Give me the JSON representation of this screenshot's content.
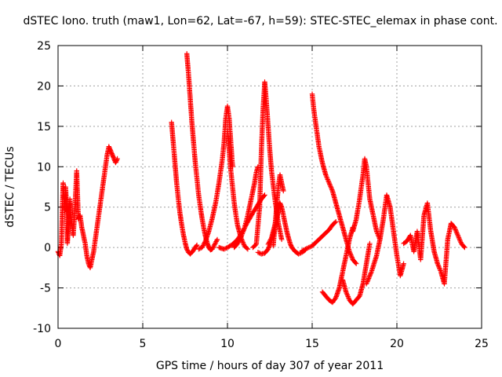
{
  "chart_data": {
    "type": "scatter",
    "title": "dSTEC Iono. truth (maw1, Lon=62, Lat=-67, h=59): STEC-STEC_elemax in phase cont.",
    "xlabel": "GPS time / hours of day 307 of year 2011",
    "ylabel": "dSTEC  / TECUs",
    "xlim": [
      0,
      25
    ],
    "ylim": [
      -10,
      25
    ],
    "xticks": [
      0,
      5,
      10,
      15,
      20,
      25
    ],
    "yticks": [
      -10,
      -5,
      0,
      5,
      10,
      15,
      20,
      25
    ],
    "grid": true,
    "marker": "plus",
    "color": "#ff0000",
    "series": [
      {
        "x": [
          0.0,
          0.1,
          0.2,
          0.3,
          0.35,
          0.4,
          0.45,
          0.5,
          0.55,
          0.6,
          0.7,
          0.8,
          0.9,
          1.0,
          1.1,
          1.2,
          1.3,
          1.4,
          1.5,
          1.6,
          1.7,
          1.8,
          1.9,
          2.0,
          2.1,
          2.2,
          2.3,
          2.4,
          2.5,
          2.6,
          2.7,
          2.8,
          2.9,
          3.0,
          3.1,
          3.2,
          3.3,
          3.4,
          3.5
        ],
        "y": [
          -0.5,
          -1.0,
          0.5,
          8.0,
          6.0,
          4.5,
          7.5,
          5.0,
          0.5,
          2.0,
          6.0,
          3.0,
          1.5,
          5.0,
          9.5,
          3.5,
          4.0,
          2.5,
          1.5,
          0.5,
          -1.0,
          -2.0,
          -2.5,
          -1.5,
          -0.5,
          1.0,
          2.5,
          4.0,
          5.5,
          7.0,
          8.5,
          10.0,
          11.5,
          12.5,
          12.0,
          11.5,
          11.0,
          10.5,
          11.0
        ]
      },
      {
        "x": [
          6.7,
          6.8,
          6.9,
          7.0,
          7.1,
          7.2,
          7.3,
          7.4,
          7.5,
          7.6,
          7.7,
          7.8,
          7.9,
          8.0,
          8.1,
          8.2
        ],
        "y": [
          15.5,
          13.0,
          10.5,
          8.0,
          6.0,
          4.2,
          2.8,
          1.6,
          0.6,
          -0.2,
          -0.6,
          -0.8,
          -0.6,
          -0.3,
          0.0,
          0.3
        ]
      },
      {
        "x": [
          7.6,
          7.7,
          7.8,
          7.9,
          8.0,
          8.1,
          8.2,
          8.3,
          8.4,
          8.5,
          8.6,
          8.7,
          8.8,
          8.9,
          9.0,
          9.1,
          9.2,
          9.3,
          9.4
        ],
        "y": [
          24.0,
          21.5,
          18.5,
          15.5,
          13.0,
          10.5,
          8.5,
          6.5,
          5.0,
          3.6,
          2.4,
          1.4,
          0.6,
          0.0,
          -0.3,
          -0.2,
          0.2,
          0.6,
          1.0
        ]
      },
      {
        "x": [
          8.3,
          8.5,
          8.7,
          8.9,
          9.1,
          9.3,
          9.5,
          9.7,
          9.8,
          9.9,
          10.0,
          10.1,
          10.2,
          10.3
        ],
        "y": [
          -0.2,
          0.0,
          0.8,
          2.0,
          3.6,
          5.5,
          8.0,
          11.0,
          13.0,
          16.0,
          17.5,
          16.0,
          13.0,
          10.0
        ]
      },
      {
        "x": [
          10.0,
          10.1,
          10.2,
          10.3,
          10.4,
          10.5,
          10.6,
          10.8,
          11.0,
          11.2
        ],
        "y": [
          14.5,
          12.0,
          9.5,
          7.5,
          5.5,
          4.0,
          2.7,
          1.2,
          0.2,
          -0.2
        ]
      },
      {
        "x": [
          9.5,
          9.8,
          10.0,
          10.3,
          10.6,
          10.9,
          11.2,
          11.5,
          11.8,
          12.0,
          12.2
        ],
        "y": [
          0.0,
          -0.2,
          0.0,
          0.4,
          1.0,
          2.0,
          3.2,
          4.3,
          5.3,
          6.0,
          6.5
        ]
      },
      {
        "x": [
          10.4,
          10.6,
          10.8,
          11.0,
          11.2,
          11.4,
          11.6,
          11.7,
          11.8
        ],
        "y": [
          0.0,
          0.5,
          1.3,
          2.4,
          4.0,
          6.0,
          8.0,
          9.3,
          10.0
        ]
      },
      {
        "x": [
          11.5,
          11.7,
          11.9,
          12.0,
          12.1,
          12.2,
          12.3,
          12.4,
          12.5,
          12.6,
          12.8,
          13.0,
          13.2
        ],
        "y": [
          0.0,
          0.4,
          5.0,
          12.0,
          17.0,
          20.5,
          18.0,
          15.0,
          12.0,
          9.5,
          6.0,
          3.0,
          1.0
        ]
      },
      {
        "x": [
          11.8,
          12.0,
          12.2,
          12.4,
          12.6,
          12.8,
          13.0
        ],
        "y": [
          -0.6,
          -0.8,
          -0.7,
          -0.2,
          0.8,
          2.5,
          4.5
        ]
      },
      {
        "x": [
          12.4,
          12.6,
          12.8,
          13.0,
          13.1,
          13.2,
          13.3,
          13.4,
          13.5,
          13.6,
          13.7,
          13.8,
          14.0,
          14.2,
          14.4,
          14.6
        ],
        "y": [
          0.4,
          1.2,
          2.8,
          4.5,
          5.5,
          5.0,
          4.0,
          3.0,
          2.0,
          1.2,
          0.5,
          0.0,
          -0.5,
          -0.8,
          -0.6,
          -0.3
        ]
      },
      {
        "x": [
          12.7,
          12.8,
          12.9,
          13.0,
          13.1,
          13.2,
          13.3
        ],
        "y": [
          0.2,
          2.5,
          5.0,
          7.5,
          9.0,
          8.0,
          7.0
        ]
      },
      {
        "x": [
          14.4,
          14.6,
          14.8,
          15.0,
          15.2,
          15.4,
          15.6,
          15.8,
          16.0,
          16.2,
          16.4
        ],
        "y": [
          -0.4,
          -0.2,
          0.0,
          0.2,
          0.6,
          1.0,
          1.4,
          1.8,
          2.2,
          2.8,
          3.2
        ]
      },
      {
        "x": [
          15.0,
          15.1,
          15.2,
          15.3,
          15.4,
          15.5,
          15.6,
          15.8,
          16.0,
          16.2,
          16.4,
          16.6,
          16.8,
          17.0,
          17.2,
          17.4,
          17.6
        ],
        "y": [
          19.0,
          17.0,
          15.5,
          14.0,
          12.5,
          11.5,
          10.5,
          9.0,
          8.0,
          7.0,
          5.5,
          4.0,
          2.5,
          1.0,
          -0.5,
          -1.5,
          -2.0
        ]
      },
      {
        "x": [
          15.6,
          15.8,
          16.0,
          16.2,
          16.4,
          16.6,
          16.8,
          17.0,
          17.2,
          17.4
        ],
        "y": [
          -5.5,
          -6.0,
          -6.5,
          -6.8,
          -6.2,
          -5.0,
          -3.0,
          -1.0,
          1.0,
          2.5
        ]
      },
      {
        "x": [
          16.8,
          17.0,
          17.2,
          17.4,
          17.6,
          17.8,
          18.0,
          18.2,
          18.4
        ],
        "y": [
          -4.0,
          -5.5,
          -6.5,
          -7.0,
          -6.5,
          -6.0,
          -4.5,
          -2.0,
          0.5
        ]
      },
      {
        "x": [
          17.4,
          17.6,
          17.8,
          18.0,
          18.1,
          18.2,
          18.3,
          18.4,
          18.6,
          18.8,
          19.0
        ],
        "y": [
          2.0,
          3.5,
          6.0,
          9.0,
          11.0,
          10.0,
          8.0,
          6.0,
          4.0,
          2.0,
          1.0
        ]
      },
      {
        "x": [
          18.2,
          18.5,
          18.8,
          19.0,
          19.2,
          19.4,
          19.6,
          19.8,
          20.0,
          20.2,
          20.4
        ],
        "y": [
          -4.5,
          -3.0,
          -1.0,
          1.0,
          3.5,
          6.5,
          5.0,
          2.0,
          -1.0,
          -3.5,
          -2.0
        ]
      },
      {
        "x": [
          20.4,
          20.6,
          20.8,
          21.0,
          21.2,
          21.4,
          21.6,
          21.8,
          22.0,
          22.2,
          22.4,
          22.6,
          22.8,
          23.0,
          23.2,
          23.4,
          23.6,
          23.8,
          24.0
        ],
        "y": [
          0.5,
          0.8,
          1.5,
          -0.5,
          2.0,
          -1.5,
          4.0,
          5.5,
          2.0,
          -0.5,
          -2.0,
          -3.0,
          -4.5,
          1.0,
          3.0,
          2.5,
          1.5,
          0.5,
          0.0
        ]
      }
    ]
  }
}
